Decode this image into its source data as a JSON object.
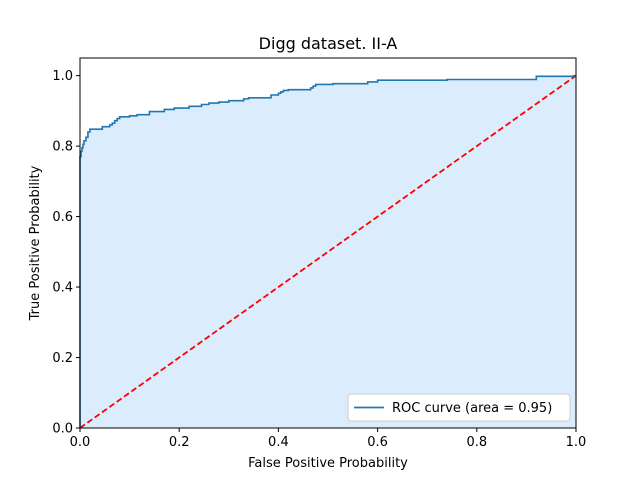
{
  "chart_data": {
    "type": "line",
    "title": "Digg dataset. II-A",
    "xlabel": "False Positive Probability",
    "ylabel": "True Positive Probability",
    "xlim": [
      0.0,
      1.0
    ],
    "ylim": [
      0.0,
      1.05
    ],
    "xticks": [
      0.0,
      0.2,
      0.4,
      0.6,
      0.8,
      1.0
    ],
    "yticks": [
      0.0,
      0.2,
      0.4,
      0.6,
      0.8,
      1.0
    ],
    "xtick_labels": [
      "0.0",
      "0.2",
      "0.4",
      "0.6",
      "0.8",
      "1.0"
    ],
    "ytick_labels": [
      "0.0",
      "0.2",
      "0.4",
      "0.6",
      "0.8",
      "1.0"
    ],
    "grid": false,
    "legend_position": "lower-right",
    "series": [
      {
        "name": "ROC curve (area = 0.95)",
        "color": "#1f77b4",
        "fill_color": "#dbecfc",
        "style": "step",
        "x": [
          0.0,
          0.0,
          0.002,
          0.002,
          0.004,
          0.004,
          0.006,
          0.006,
          0.008,
          0.008,
          0.012,
          0.012,
          0.016,
          0.016,
          0.02,
          0.02,
          0.045,
          0.045,
          0.06,
          0.06,
          0.065,
          0.065,
          0.07,
          0.07,
          0.075,
          0.075,
          0.08,
          0.08,
          0.1,
          0.1,
          0.115,
          0.115,
          0.14,
          0.14,
          0.17,
          0.17,
          0.19,
          0.19,
          0.22,
          0.22,
          0.245,
          0.245,
          0.26,
          0.26,
          0.28,
          0.28,
          0.3,
          0.3,
          0.33,
          0.33,
          0.34,
          0.34,
          0.385,
          0.385,
          0.4,
          0.4,
          0.405,
          0.405,
          0.41,
          0.41,
          0.42,
          0.42,
          0.465,
          0.465,
          0.47,
          0.47,
          0.475,
          0.475,
          0.51,
          0.51,
          0.58,
          0.58,
          0.6,
          0.6,
          0.74,
          0.74,
          0.92,
          0.92,
          0.995,
          0.995,
          1.0
        ],
        "y": [
          0.0,
          0.77,
          0.77,
          0.785,
          0.785,
          0.795,
          0.795,
          0.805,
          0.805,
          0.815,
          0.815,
          0.825,
          0.825,
          0.84,
          0.84,
          0.848,
          0.848,
          0.855,
          0.855,
          0.86,
          0.86,
          0.865,
          0.865,
          0.872,
          0.872,
          0.878,
          0.878,
          0.883,
          0.883,
          0.886,
          0.886,
          0.889,
          0.889,
          0.898,
          0.898,
          0.904,
          0.904,
          0.908,
          0.908,
          0.913,
          0.913,
          0.918,
          0.918,
          0.922,
          0.922,
          0.925,
          0.925,
          0.929,
          0.929,
          0.934,
          0.934,
          0.937,
          0.937,
          0.945,
          0.945,
          0.95,
          0.95,
          0.954,
          0.954,
          0.958,
          0.958,
          0.96,
          0.96,
          0.965,
          0.965,
          0.97,
          0.97,
          0.975,
          0.975,
          0.977,
          0.977,
          0.982,
          0.982,
          0.987,
          0.987,
          0.989,
          0.989,
          0.998,
          0.998,
          1.0,
          1.0
        ]
      },
      {
        "name": "",
        "color": "#ff0000",
        "style": "dashed",
        "x": [
          0.0,
          1.0
        ],
        "y": [
          0.0,
          1.0
        ]
      }
    ]
  }
}
